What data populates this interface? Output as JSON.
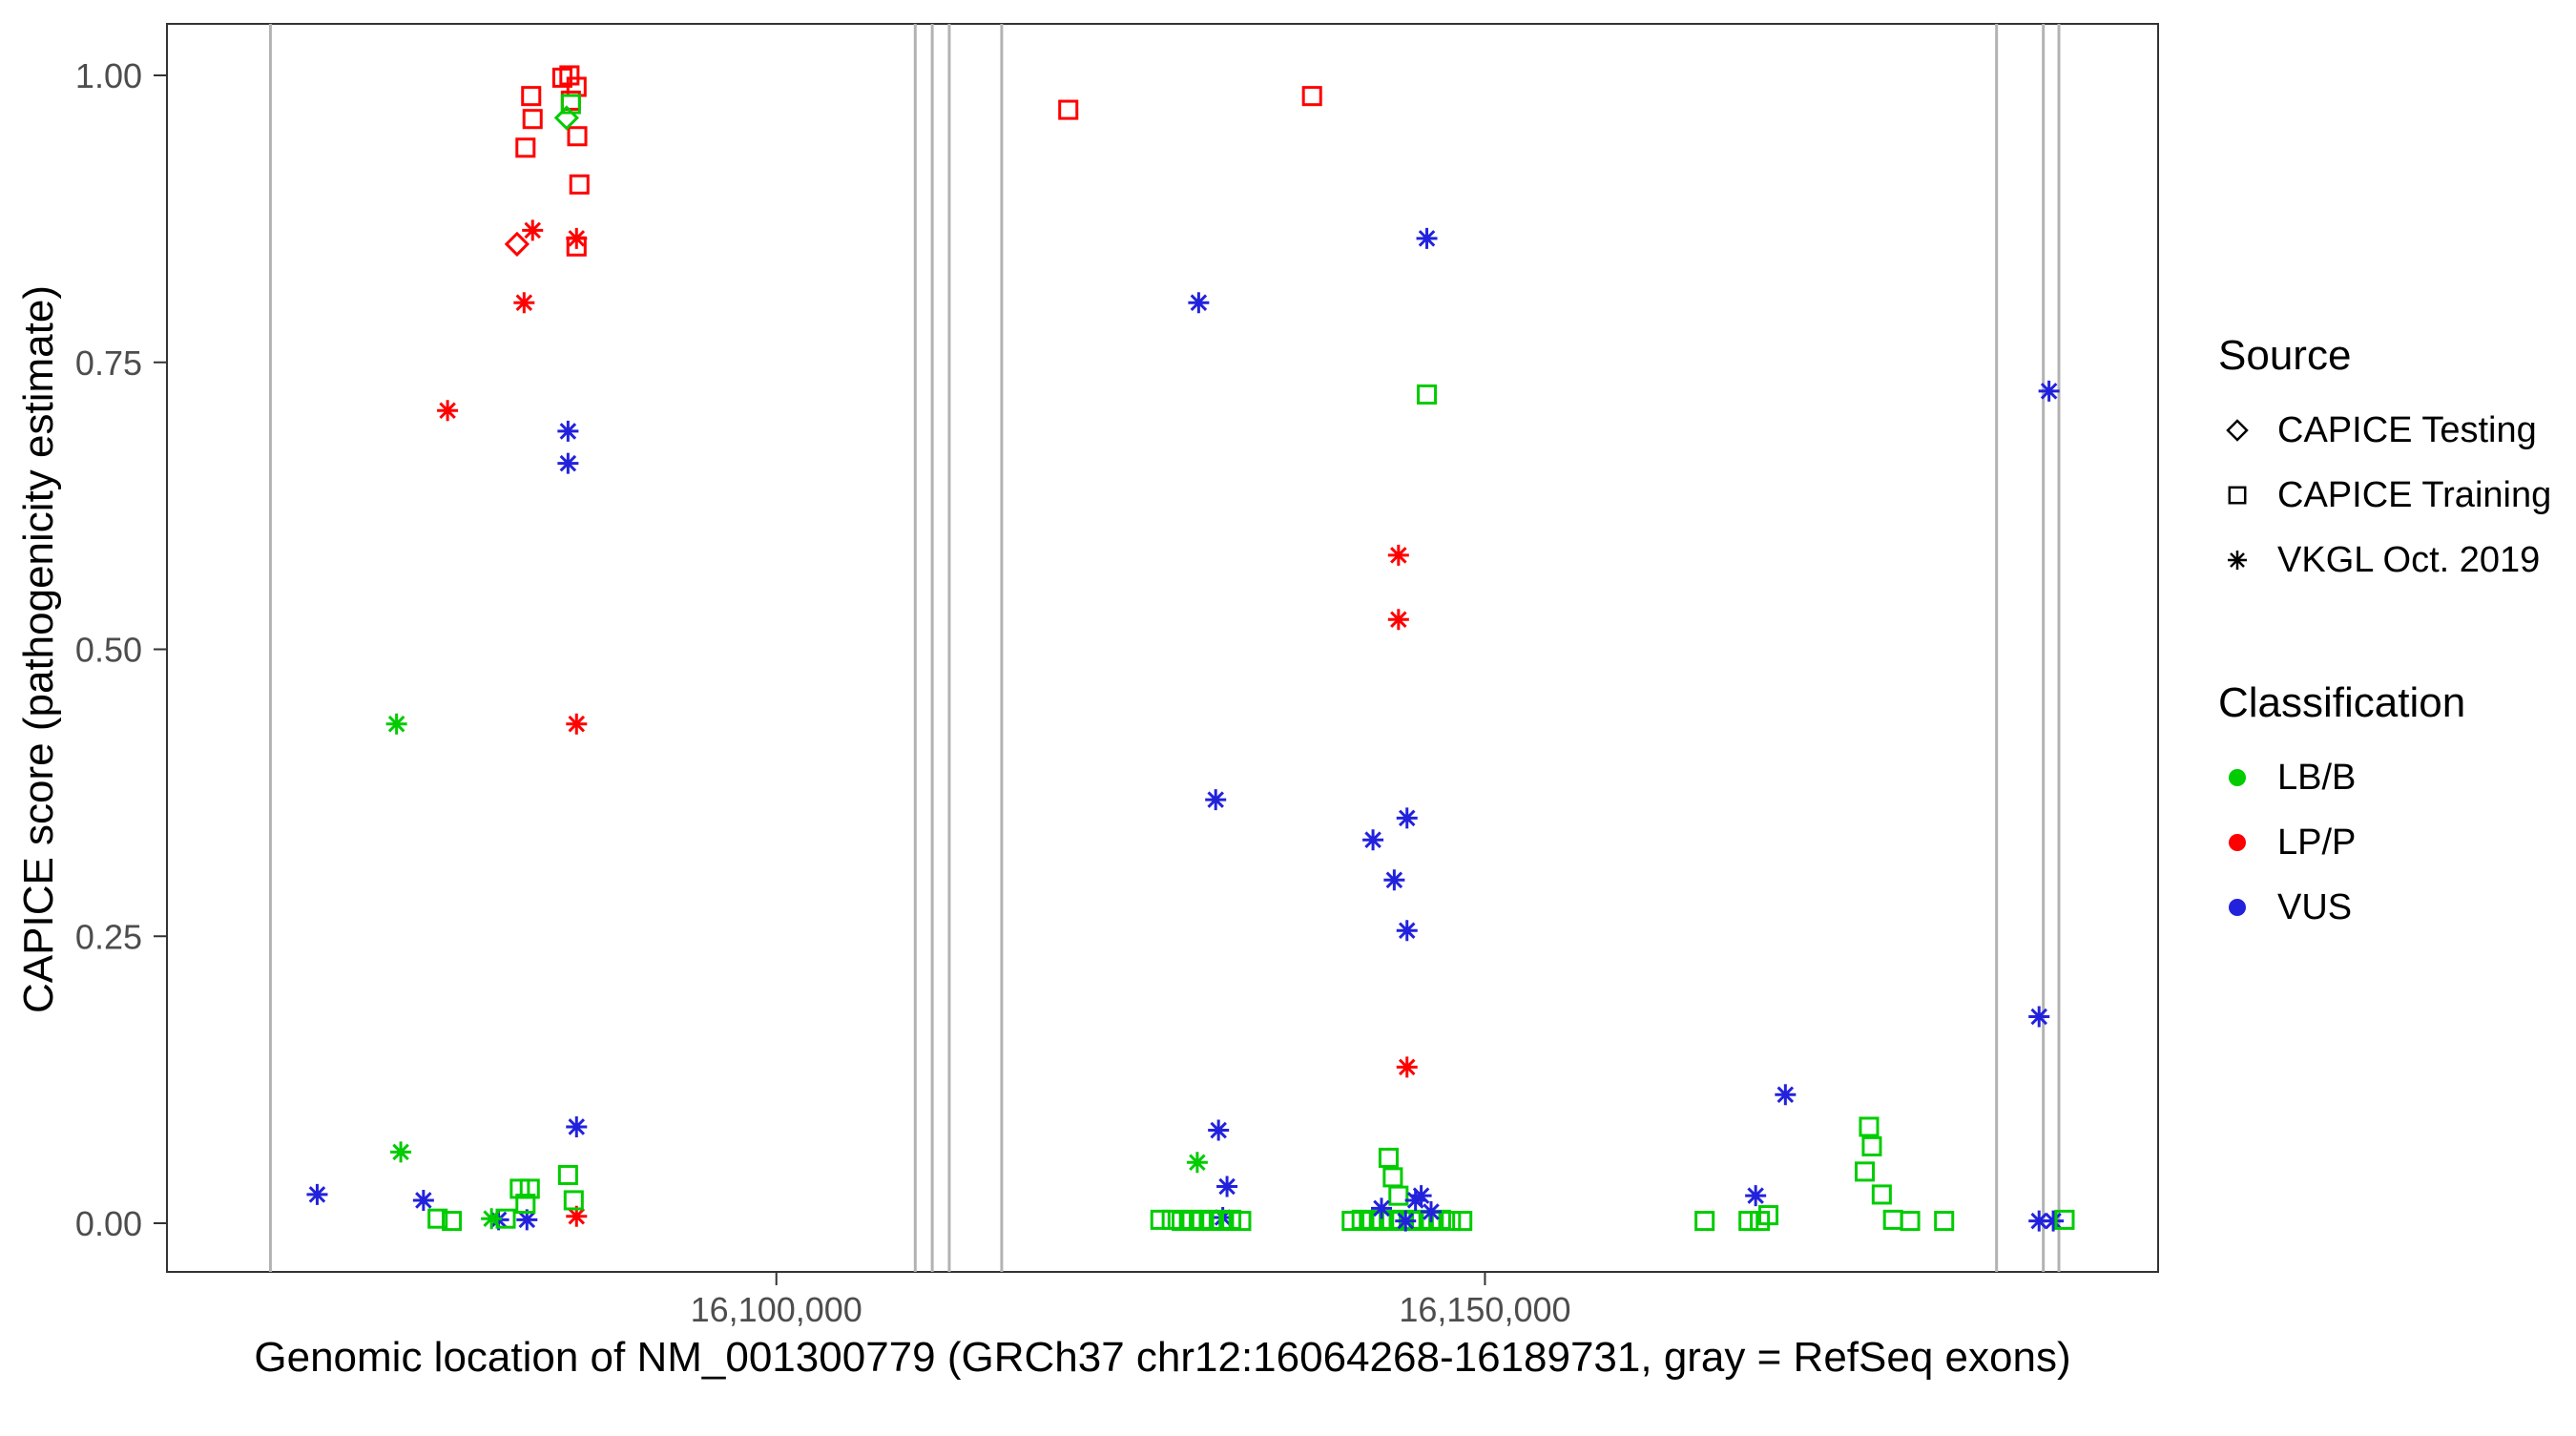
{
  "chart_data": {
    "type": "scatter",
    "title": "",
    "xlabel": "Genomic location of NM_001300779 (GRCh37 chr12:16064268-16189731, gray = RefSeq exons)",
    "ylabel": "CAPICE score (pathogenicity estimate)",
    "xlim": [
      16057000,
      16197500
    ],
    "ylim": [
      0,
      1
    ],
    "x_ticks": [
      {
        "value": 16100000,
        "label": "16,100,000"
      },
      {
        "value": 16150000,
        "label": "16,150,000"
      }
    ],
    "y_ticks": [
      {
        "value": 0.0,
        "label": "0.00"
      },
      {
        "value": 0.25,
        "label": "0.25"
      },
      {
        "value": 0.5,
        "label": "0.50"
      },
      {
        "value": 0.75,
        "label": "0.75"
      },
      {
        "value": 1.0,
        "label": "1.00"
      }
    ],
    "grid": false,
    "legend_position": "right",
    "legend": {
      "source_title": "Source",
      "sources": [
        {
          "id": "testing",
          "label": "CAPICE Testing",
          "shape": "diamond"
        },
        {
          "id": "training",
          "label": "CAPICE Training",
          "shape": "square"
        },
        {
          "id": "vkgl",
          "label": "VKGL Oct. 2019",
          "shape": "asterisk"
        }
      ],
      "classification_title": "Classification",
      "classes": [
        {
          "id": "LBB",
          "label": "LB/B",
          "color": "#00CC00"
        },
        {
          "id": "LPP",
          "label": "LP/P",
          "color": "#FF0000"
        },
        {
          "id": "VUS",
          "label": "VUS",
          "color": "#2222DD"
        }
      ]
    },
    "exon_color": "#B3B3B3",
    "exons": [
      16064300,
      16109800,
      16111000,
      16112200,
      16115900,
      16186100,
      16189400,
      16190500
    ],
    "point_format": [
      "genomic_position",
      "capice_score",
      "source",
      "classification"
    ],
    "points": [
      [
        16082700,
        0.982,
        "training",
        "LPP"
      ],
      [
        16082800,
        0.962,
        "training",
        "LPP"
      ],
      [
        16082300,
        0.937,
        "training",
        "LPP"
      ],
      [
        16084900,
        0.998,
        "training",
        "LPP"
      ],
      [
        16085400,
        1.0,
        "training",
        "LPP"
      ],
      [
        16085900,
        0.99,
        "training",
        "LPP"
      ],
      [
        16085500,
        0.978,
        "training",
        "LPP"
      ],
      [
        16085950,
        0.947,
        "training",
        "LPP"
      ],
      [
        16086100,
        0.905,
        "training",
        "LPP"
      ],
      [
        16085900,
        0.851,
        "training",
        "LPP"
      ],
      [
        16081700,
        0.853,
        "testing",
        "LPP"
      ],
      [
        16085200,
        0.963,
        "testing",
        "LBB"
      ],
      [
        16085500,
        0.975,
        "training",
        "LBB"
      ],
      [
        16082800,
        0.865,
        "vkgl",
        "LPP"
      ],
      [
        16082200,
        0.802,
        "vkgl",
        "LPP"
      ],
      [
        16076800,
        0.708,
        "vkgl",
        "LPP"
      ],
      [
        16085900,
        0.858,
        "vkgl",
        "LPP"
      ],
      [
        16085900,
        0.435,
        "vkgl",
        "LPP"
      ],
      [
        16085900,
        0.006,
        "vkgl",
        "LPP"
      ],
      [
        16085300,
        0.69,
        "vkgl",
        "VUS"
      ],
      [
        16085300,
        0.662,
        "vkgl",
        "VUS"
      ],
      [
        16067600,
        0.025,
        "vkgl",
        "VUS"
      ],
      [
        16075100,
        0.02,
        "vkgl",
        "VUS"
      ],
      [
        16080400,
        0.003,
        "vkgl",
        "VUS"
      ],
      [
        16082400,
        0.003,
        "vkgl",
        "VUS"
      ],
      [
        16085900,
        0.084,
        "vkgl",
        "VUS"
      ],
      [
        16073200,
        0.435,
        "vkgl",
        "LBB"
      ],
      [
        16073500,
        0.062,
        "vkgl",
        "LBB"
      ],
      [
        16079900,
        0.004,
        "vkgl",
        "LBB"
      ],
      [
        16076100,
        0.004,
        "training",
        "LBB"
      ],
      [
        16077100,
        0.002,
        "training",
        "LBB"
      ],
      [
        16081900,
        0.03,
        "training",
        "LBB"
      ],
      [
        16082600,
        0.03,
        "training",
        "LBB"
      ],
      [
        16082300,
        0.017,
        "training",
        "LBB"
      ],
      [
        16085300,
        0.042,
        "training",
        "LBB"
      ],
      [
        16085700,
        0.02,
        "training",
        "LBB"
      ],
      [
        16080900,
        0.004,
        "training",
        "LBB"
      ],
      [
        16120600,
        0.97,
        "training",
        "LPP"
      ],
      [
        16137800,
        0.982,
        "training",
        "LPP"
      ],
      [
        16129800,
        0.802,
        "vkgl",
        "VUS"
      ],
      [
        16145900,
        0.858,
        "vkgl",
        "VUS"
      ],
      [
        16145900,
        0.722,
        "training",
        "LBB"
      ],
      [
        16143900,
        0.582,
        "vkgl",
        "LPP"
      ],
      [
        16143900,
        0.526,
        "vkgl",
        "LPP"
      ],
      [
        16131000,
        0.369,
        "vkgl",
        "VUS"
      ],
      [
        16144500,
        0.353,
        "vkgl",
        "VUS"
      ],
      [
        16142100,
        0.334,
        "vkgl",
        "VUS"
      ],
      [
        16143600,
        0.299,
        "vkgl",
        "VUS"
      ],
      [
        16144500,
        0.255,
        "vkgl",
        "VUS"
      ],
      [
        16144500,
        0.136,
        "vkgl",
        "LPP"
      ],
      [
        16131200,
        0.081,
        "vkgl",
        "VUS"
      ],
      [
        16129700,
        0.053,
        "vkgl",
        "LBB"
      ],
      [
        16131800,
        0.032,
        "vkgl",
        "VUS"
      ],
      [
        16131500,
        0.005,
        "vkgl",
        "VUS"
      ],
      [
        16127100,
        0.003,
        "training",
        "LBB"
      ],
      [
        16127900,
        0.003,
        "training",
        "LBB"
      ],
      [
        16128600,
        0.002,
        "training",
        "LBB"
      ],
      [
        16129300,
        0.003,
        "training",
        "LBB"
      ],
      [
        16130000,
        0.002,
        "training",
        "LBB"
      ],
      [
        16130700,
        0.003,
        "training",
        "LBB"
      ],
      [
        16131400,
        0.002,
        "training",
        "LBB"
      ],
      [
        16132100,
        0.003,
        "training",
        "LBB"
      ],
      [
        16132800,
        0.002,
        "training",
        "LBB"
      ],
      [
        16140600,
        0.002,
        "training",
        "LBB"
      ],
      [
        16141300,
        0.003,
        "training",
        "LBB"
      ],
      [
        16142000,
        0.002,
        "training",
        "LBB"
      ],
      [
        16142700,
        0.003,
        "training",
        "LBB"
      ],
      [
        16143400,
        0.002,
        "training",
        "LBB"
      ],
      [
        16144100,
        0.003,
        "training",
        "LBB"
      ],
      [
        16144800,
        0.002,
        "training",
        "LBB"
      ],
      [
        16145500,
        0.003,
        "training",
        "LBB"
      ],
      [
        16146200,
        0.002,
        "training",
        "LBB"
      ],
      [
        16146900,
        0.003,
        "training",
        "LBB"
      ],
      [
        16147600,
        0.002,
        "training",
        "LBB"
      ],
      [
        16148400,
        0.002,
        "training",
        "LBB"
      ],
      [
        16143200,
        0.057,
        "training",
        "LBB"
      ],
      [
        16143500,
        0.04,
        "training",
        "LBB"
      ],
      [
        16143900,
        0.024,
        "training",
        "LBB"
      ],
      [
        16142700,
        0.013,
        "vkgl",
        "VUS"
      ],
      [
        16145100,
        0.02,
        "vkgl",
        "VUS"
      ],
      [
        16145500,
        0.024,
        "vkgl",
        "VUS"
      ],
      [
        16144400,
        0.002,
        "vkgl",
        "VUS"
      ],
      [
        16146200,
        0.01,
        "vkgl",
        "VUS"
      ],
      [
        16171200,
        0.112,
        "vkgl",
        "VUS"
      ],
      [
        16169100,
        0.024,
        "vkgl",
        "VUS"
      ],
      [
        16165500,
        0.002,
        "training",
        "LBB"
      ],
      [
        16168600,
        0.002,
        "training",
        "LBB"
      ],
      [
        16169400,
        0.002,
        "training",
        "LBB"
      ],
      [
        16170000,
        0.007,
        "training",
        "LBB"
      ],
      [
        16177100,
        0.084,
        "training",
        "LBB"
      ],
      [
        16177300,
        0.067,
        "training",
        "LBB"
      ],
      [
        16176800,
        0.045,
        "training",
        "LBB"
      ],
      [
        16178000,
        0.025,
        "training",
        "LBB"
      ],
      [
        16178800,
        0.003,
        "training",
        "LBB"
      ],
      [
        16180000,
        0.002,
        "training",
        "LBB"
      ],
      [
        16182400,
        0.002,
        "training",
        "LBB"
      ],
      [
        16189800,
        0.725,
        "vkgl",
        "VUS"
      ],
      [
        16189100,
        0.18,
        "vkgl",
        "VUS"
      ],
      [
        16189100,
        0.002,
        "vkgl",
        "VUS"
      ],
      [
        16190100,
        0.002,
        "vkgl",
        "VUS"
      ],
      [
        16190900,
        0.003,
        "training",
        "LBB"
      ]
    ]
  }
}
